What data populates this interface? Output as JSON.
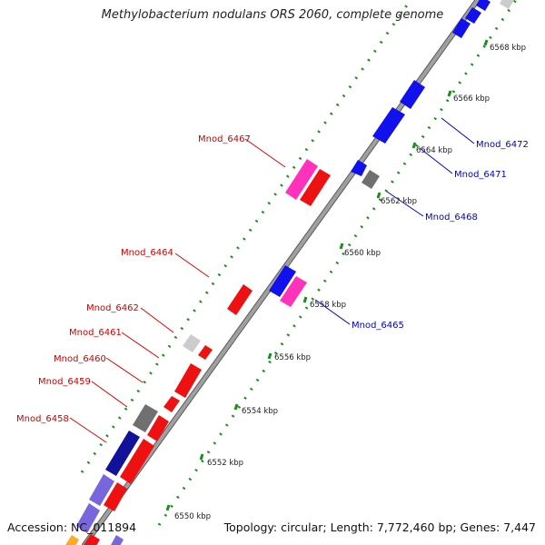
{
  "title": "Methylobacterium nodulans ORS 2060, complete genome",
  "accession_text": "Accession: NC_011894",
  "summary_text": "Topology: circular; Length: 7,772,460 bp; Genes: 7,447",
  "colors": {
    "backbone": "#a0a0a0",
    "tick_dots": "#1a8f1a",
    "forward_gene": "#ee1111",
    "reverse_gene": "#1111ee",
    "pink_gene": "#ff33bb",
    "gray_gene": "#707070",
    "light_gray_gene": "#cccccc",
    "lavender_gene": "#7766dd",
    "navy_gene": "#111199",
    "forward_label": "#cc0000",
    "reverse_label": "#0000cc"
  },
  "scale_ticks": [
    "6550 kbp",
    "6552 kbp",
    "6554 kbp",
    "6556 kbp",
    "6558 kbp",
    "6560 kbp",
    "6562 kbp",
    "6564 kbp",
    "6566 kbp",
    "6568 kbp"
  ],
  "forward_labels": [
    "Mnod_6467",
    "Mnod_6464",
    "Mnod_6462",
    "Mnod_6461",
    "Mnod_6460",
    "Mnod_6459",
    "Mnod_6458"
  ],
  "reverse_labels": [
    "Mnod_6472",
    "Mnod_6471",
    "Mnod_6468",
    "Mnod_6465"
  ]
}
